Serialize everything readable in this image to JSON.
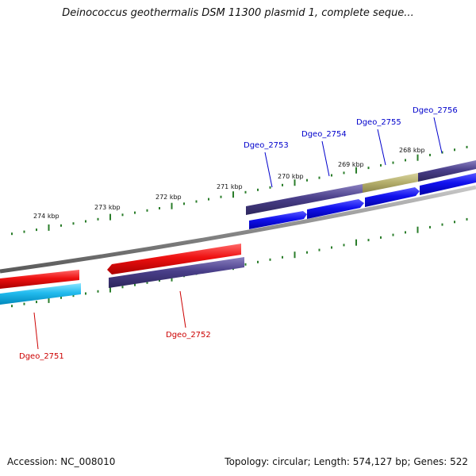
{
  "title": "Deinococcus geothermalis DSM 11300 plasmid 1, complete seque...",
  "footer": {
    "accession": "Accession: NC_008010",
    "stats": "Topology: circular; Length: 574,127 bp; Genes: 522"
  },
  "scale_labels": [
    "274 kbp",
    "273 kbp",
    "272 kbp",
    "271 kbp",
    "270 kbp",
    "269 kbp",
    "268 kbp"
  ],
  "genes": [
    {
      "name": "Dgeo_2751",
      "strand": "reverse",
      "color": "#cc0000"
    },
    {
      "name": "Dgeo_2752",
      "strand": "reverse",
      "color": "#cc0000"
    },
    {
      "name": "Dgeo_2753",
      "strand": "forward",
      "color": "#0000cc"
    },
    {
      "name": "Dgeo_2754",
      "strand": "forward",
      "color": "#0000cc"
    },
    {
      "name": "Dgeo_2755",
      "strand": "forward",
      "color": "#0000cc"
    },
    {
      "name": "Dgeo_2756",
      "strand": "forward",
      "color": "#0000cc"
    }
  ],
  "colors": {
    "backbone": "#8a8a8a",
    "tick": "#2a7d2a",
    "cds_reverse": "#ee1111",
    "cds_forward": "#1111ee",
    "gene_feature": "#4a3f8a",
    "gene_feature_highlight": "#b3ad6a",
    "cds_reverse_light": "#22bbee"
  }
}
